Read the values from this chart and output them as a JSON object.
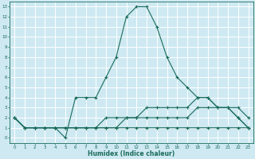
{
  "xlabel": "Humidex (Indice chaleur)",
  "bg_color": "#cee9f2",
  "line_color": "#1a6b5a",
  "grid_color": "#ffffff",
  "xlim": [
    -0.5,
    23.5
  ],
  "ylim": [
    -0.5,
    13.5
  ],
  "xticks": [
    0,
    1,
    2,
    3,
    4,
    5,
    6,
    7,
    8,
    9,
    10,
    11,
    12,
    13,
    14,
    15,
    16,
    17,
    18,
    19,
    20,
    21,
    22,
    23
  ],
  "yticks": [
    0,
    1,
    2,
    3,
    4,
    5,
    6,
    7,
    8,
    9,
    10,
    11,
    12,
    13
  ],
  "line1_x": [
    0,
    1,
    2,
    3,
    4,
    5,
    6,
    7,
    8,
    9,
    10,
    11,
    12,
    13,
    14,
    15,
    16,
    17,
    18,
    19,
    20,
    21,
    22,
    23
  ],
  "line1_y": [
    2,
    1,
    1,
    1,
    1,
    0,
    4,
    4,
    4,
    6,
    8,
    12,
    13,
    13,
    11,
    8,
    6,
    5,
    4,
    4,
    3,
    3,
    2,
    1
  ],
  "line2_x": [
    0,
    1,
    2,
    3,
    4,
    5,
    6,
    7,
    8,
    9,
    10,
    11,
    12,
    13,
    14,
    15,
    16,
    17,
    18,
    19,
    20,
    21,
    22,
    23
  ],
  "line2_y": [
    2,
    1,
    1,
    1,
    1,
    1,
    1,
    1,
    1,
    2,
    2,
    2,
    2,
    3,
    3,
    3,
    3,
    3,
    4,
    4,
    3,
    3,
    3,
    2
  ],
  "line3_x": [
    0,
    1,
    2,
    3,
    4,
    5,
    6,
    7,
    8,
    9,
    10,
    11,
    12,
    13,
    14,
    15,
    16,
    17,
    18,
    19,
    20,
    21,
    22,
    23
  ],
  "line3_y": [
    2,
    1,
    1,
    1,
    1,
    1,
    1,
    1,
    1,
    1,
    1,
    2,
    2,
    2,
    2,
    2,
    2,
    2,
    3,
    3,
    3,
    3,
    2,
    1
  ],
  "line4_x": [
    0,
    1,
    2,
    3,
    4,
    5,
    6,
    7,
    8,
    9,
    10,
    11,
    12,
    13,
    14,
    15,
    16,
    17,
    18,
    19,
    20,
    21,
    22,
    23
  ],
  "line4_y": [
    2,
    1,
    1,
    1,
    1,
    1,
    1,
    1,
    1,
    1,
    1,
    1,
    1,
    1,
    1,
    1,
    1,
    1,
    1,
    1,
    1,
    1,
    1,
    1
  ]
}
